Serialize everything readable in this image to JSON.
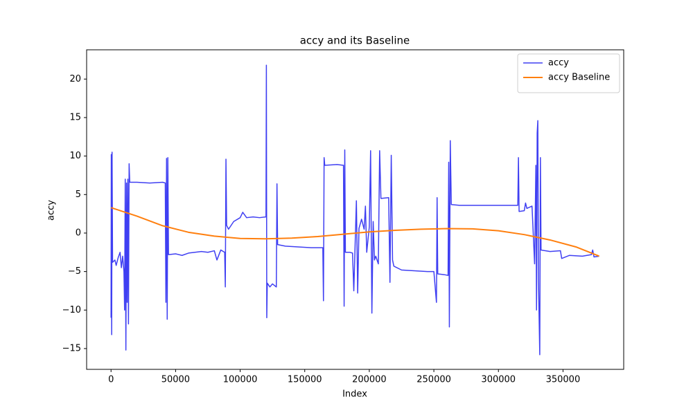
{
  "chart_data": {
    "type": "line",
    "title": "accy and its Baseline",
    "xlabel": "Index",
    "ylabel": "accy",
    "xlim": [
      -18900,
      397000
    ],
    "ylim": [
      -17.7,
      23.8
    ],
    "xticks": [
      0,
      50000,
      100000,
      150000,
      200000,
      250000,
      300000,
      350000
    ],
    "yticks": [
      {
        "value": -15,
        "label": "−15"
      },
      {
        "value": -10,
        "label": "−10"
      },
      {
        "value": -5,
        "label": "−5"
      },
      0,
      5,
      10,
      15,
      20
    ],
    "legend": "upper right",
    "grid": false,
    "series": [
      {
        "name": "accy",
        "color": "#3f3ff2",
        "width": 1.5,
        "x": [
          0,
          200,
          500,
          800,
          1200,
          3000,
          4000,
          5500,
          7000,
          8000,
          9000,
          10000,
          10500,
          11000,
          11500,
          12000,
          12500,
          13000,
          13500,
          14000,
          14500,
          20000,
          30000,
          40000,
          42000,
          42500,
          43000,
          43500,
          44000,
          44500,
          50000,
          55000,
          60000,
          70000,
          75000,
          80000,
          82000,
          85000,
          88000,
          88500,
          89000,
          89500,
          91000,
          95000,
          100000,
          102000,
          105000,
          110000,
          115000,
          120000,
          120300,
          120600,
          121000,
          123000,
          125000,
          128000,
          128500,
          129000,
          135000,
          145000,
          155000,
          164000,
          164500,
          165000,
          165500,
          175000,
          180000,
          180500,
          181000,
          181500,
          185000,
          187000,
          188000,
          190000,
          191000,
          192000,
          194000,
          196000,
          197000,
          198000,
          200000,
          201000,
          202000,
          203000,
          204000,
          205000,
          207000,
          208000,
          209000,
          215000,
          216000,
          217000,
          218000,
          219000,
          225000,
          235000,
          245000,
          250000,
          252000,
          252500,
          253000,
          258000,
          261000,
          261500,
          262000,
          262700,
          263500,
          270000,
          280000,
          300000,
          315000,
          315500,
          316000,
          320000,
          321000,
          322000,
          326000,
          328000,
          329000,
          329500,
          330000,
          330500,
          331000,
          332000,
          332500,
          333000,
          340000,
          348000,
          349000,
          355000,
          365000,
          372000,
          373000,
          374000,
          378000
        ],
        "values": [
          -11,
          10.2,
          -13.2,
          10.5,
          -3.8,
          -3.5,
          -4.2,
          -3.2,
          -2.5,
          -4.5,
          -3,
          -5,
          -10,
          7,
          -15.2,
          6.5,
          -9,
          7,
          -11.8,
          9,
          6.6,
          6.6,
          6.5,
          6.6,
          6.5,
          -9,
          9.7,
          -11.2,
          9.8,
          -2.8,
          -2.7,
          -2.9,
          -2.6,
          -2.4,
          -2.5,
          -2.3,
          -3.5,
          -2.2,
          -2.5,
          -7,
          9.6,
          1,
          0.5,
          1.5,
          2.0,
          2.7,
          2.0,
          2.1,
          2.0,
          2.1,
          21.8,
          -11,
          -6.5,
          -7,
          -6.6,
          -7,
          6.4,
          -1.5,
          -1.7,
          -1.8,
          -1.9,
          -1.9,
          -8.8,
          9.8,
          8.8,
          8.9,
          8.8,
          -9.5,
          10.8,
          -2.5,
          -2.5,
          -2.6,
          -7.5,
          4.2,
          -7.8,
          0.6,
          1.8,
          0.5,
          3.5,
          -2.5,
          0.8,
          10.7,
          -10.4,
          1.5,
          -3.5,
          -3.0,
          -4,
          10.7,
          4.5,
          4.6,
          -6.4,
          10.1,
          -3.5,
          -4.3,
          -4.8,
          -4.9,
          -5.0,
          -5.0,
          -9,
          4.6,
          -5.3,
          -5.4,
          -5.5,
          9.2,
          -12.2,
          12,
          3.7,
          3.6,
          3.6,
          3.6,
          3.6,
          9.8,
          2.8,
          2.9,
          3.9,
          3.2,
          3.5,
          -4,
          8.8,
          -10,
          13,
          14.6,
          -6,
          -15.8,
          9.8,
          -2.2,
          -2.4,
          -2.3,
          -3.3,
          -2.9,
          -3.0,
          -2.8,
          -2.2,
          -3.1,
          -3.0
        ]
      },
      {
        "name": "accy Baseline",
        "color": "#ff7f0e",
        "width": 2,
        "x": [
          0,
          20000,
          40000,
          60000,
          80000,
          100000,
          120000,
          140000,
          160000,
          180000,
          200000,
          220000,
          240000,
          260000,
          280000,
          300000,
          320000,
          340000,
          360000,
          378000
        ],
        "values": [
          3.3,
          2.2,
          0.95,
          0.1,
          -0.4,
          -0.7,
          -0.75,
          -0.65,
          -0.45,
          -0.15,
          0.15,
          0.35,
          0.5,
          0.58,
          0.55,
          0.3,
          -0.2,
          -0.9,
          -1.8,
          -3.0
        ]
      }
    ]
  }
}
